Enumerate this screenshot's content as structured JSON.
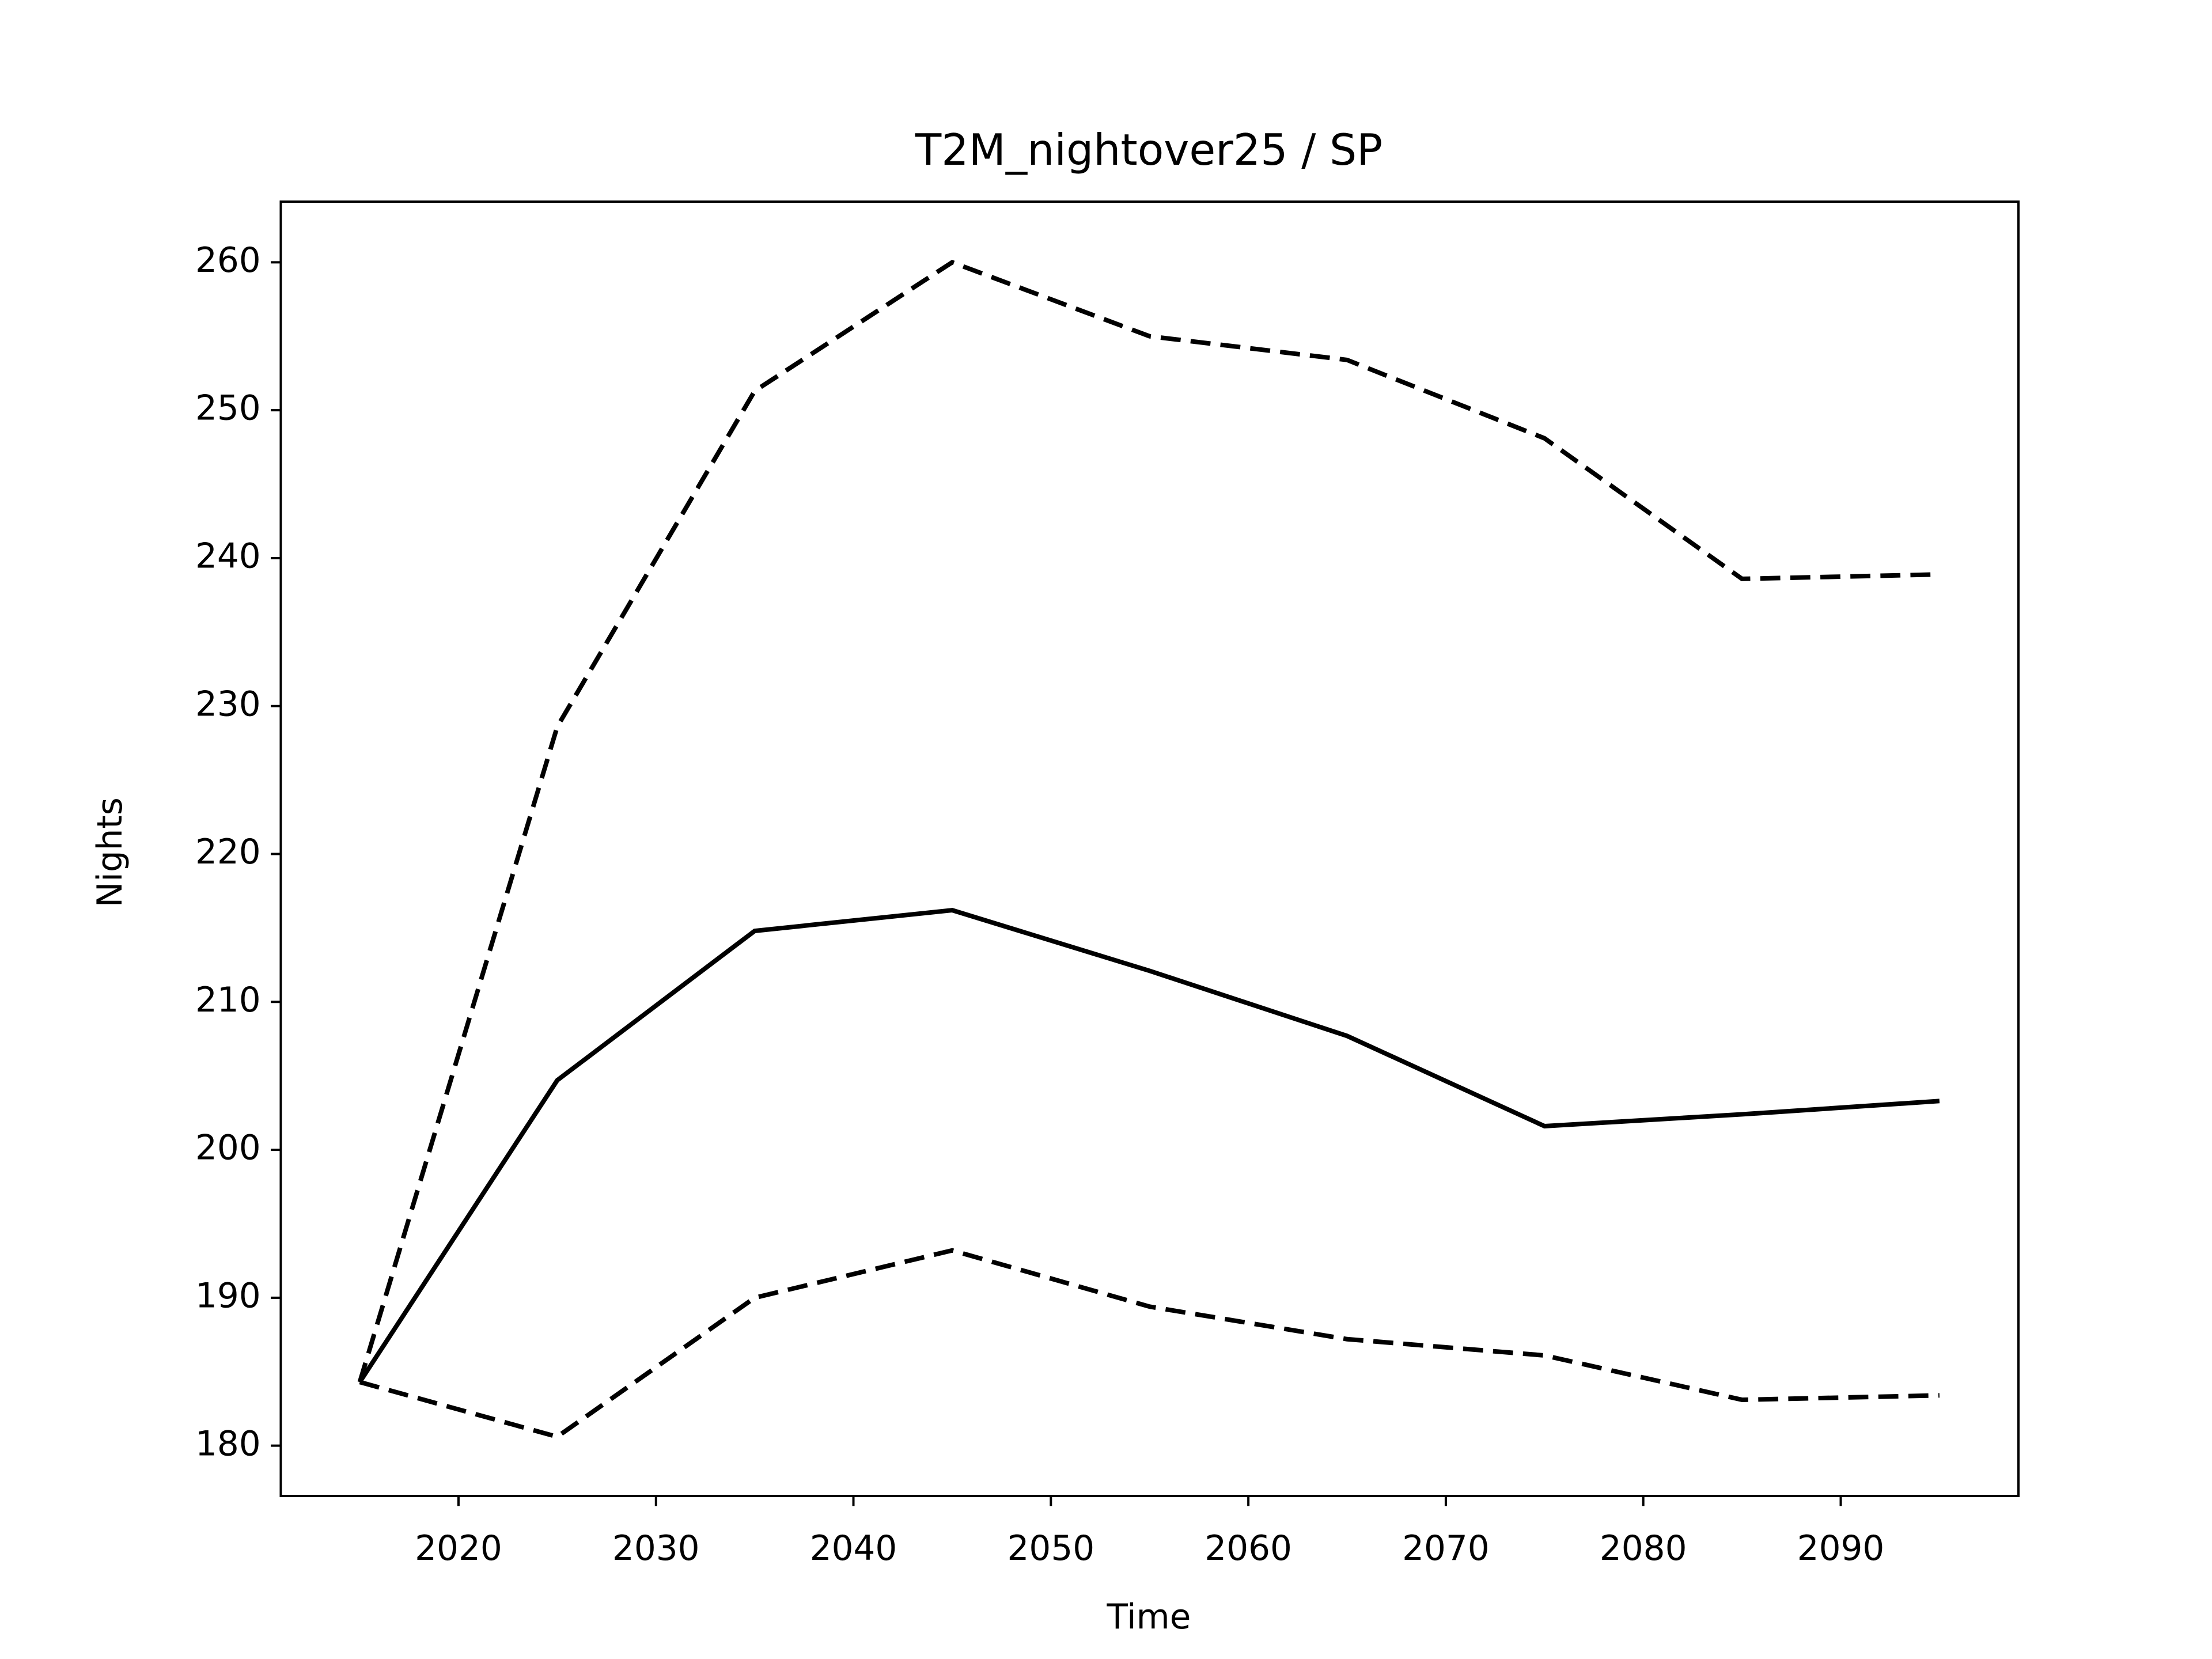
{
  "chart_data": {
    "type": "line",
    "title": "T2M_nightover25 / SP",
    "x_label": "Time",
    "y_label": "Nights",
    "x": [
      2015,
      2025,
      2035,
      2045,
      2055,
      2065,
      2075,
      2085,
      2095
    ],
    "series": [
      {
        "color": "#000000",
        "style": "solid",
        "values": [
          184.3,
          204.7,
          214.8,
          216.2,
          212.1,
          207.7,
          201.6,
          202.4,
          203.3
        ]
      },
      {
        "color": "#000000",
        "style": "dashed",
        "values": [
          184.3,
          228.6,
          251.3,
          260.0,
          255.0,
          253.4,
          248.1,
          238.6,
          238.9
        ]
      },
      {
        "color": "#000000",
        "style": "dashed",
        "values": [
          184.3,
          180.6,
          190.0,
          193.2,
          189.4,
          187.2,
          186.1,
          183.1,
          183.4
        ]
      }
    ],
    "xlim": [
      2011,
      2099
    ],
    "xticks": [
      2020,
      2030,
      2040,
      2050,
      2060,
      2070,
      2080,
      2090
    ],
    "ylim": [
      176.6,
      264.1
    ],
    "yticks": [
      180,
      190,
      200,
      210,
      220,
      230,
      240,
      250,
      260
    ],
    "grid": false
  }
}
